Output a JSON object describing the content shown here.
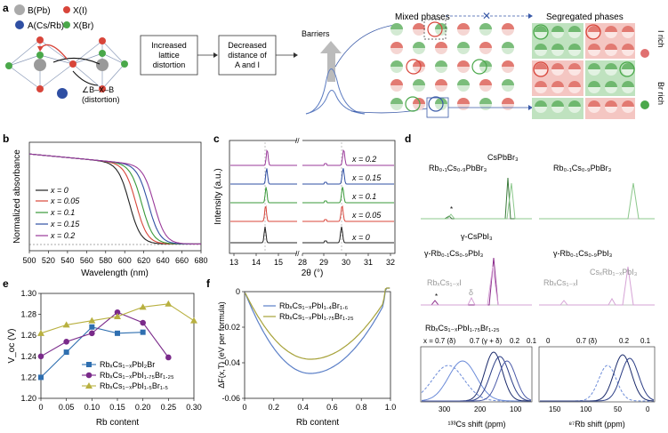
{
  "colors": {
    "red": "#d8453a",
    "blue": "#2f4fa3",
    "green": "#4aa84a",
    "grey": "#9a9a9a",
    "lightgreen": "#d8ecd8",
    "pink": "#f6dcdc",
    "purple": "#8a2a8a",
    "olive": "#a7a23a",
    "navy": "#2c3e86",
    "lightpurple": "#d6a3d6"
  },
  "panel_a": {
    "label": "a",
    "legend_b": "B(Pb)",
    "legend_x_i": "X(I)",
    "legend_a": "A(Cs/Rb)",
    "legend_x_br": "X(Br)",
    "angle_label_line1": "∠B–X–B",
    "angle_label_line2": "(distortion)",
    "box1_line1": "Increased",
    "box1_line2": "lattice",
    "box1_line3": "distortion",
    "box2_line1": "Decreased",
    "box2_line2": "distance of",
    "box2_line3": "A and I",
    "barriers_label": "Barriers",
    "mixed_label": "Mixed phases",
    "segregated_label": "Segregated phases",
    "i_rich_label": "I rich",
    "br_rich_label": "Br rich"
  },
  "panel_b": {
    "label": "b",
    "ylabel": "Normalized absorbance",
    "xlabel": "Wavelength (nm)",
    "legend": [
      "x = 0",
      "x = 0.05",
      "x = 0.1",
      "x = 0.15",
      "x = 0.2"
    ]
  },
  "panel_c": {
    "label": "c",
    "ylabel": "Intensity (a.u.)",
    "xlabel": "2θ (°)",
    "trace_labels": [
      "x = 0.2",
      "x = 0.15",
      "x = 0.1",
      "x = 0.05",
      "x = 0"
    ]
  },
  "panel_d": {
    "label": "d",
    "csbr_label": "CsPbBr₃",
    "rbcsbr_label_left": "Rb₀.₁Cs₀.₉PbBr₃",
    "rbcsbr_label_right": "Rb₀.₁Cs₀.₉PbBr₃",
    "gamma_cspbi3": "γ-CsPbI₃",
    "gamma_rbcs_left": "γ-Rb₀.₁Cs₀.₉PbI₃",
    "gamma_rbcs_right": "γ-Rb₀.₁Cs₀.₉PbI₃",
    "rbcsi_left": "RbₓCs₁₋ₓI",
    "delta_label": "δ",
    "rbcsi_right": "RbₓCs₁₋ₓI",
    "csrbpbi_right": "CsₓRb₁₋ₓPbI₃",
    "mixed_title": "RbₓCs₁₋ₓPbI₁.₇₅Br₁.₂₅",
    "x_labels_left": [
      "x = 0.7 (δ)",
      "0.7 (γ + δ)",
      "0.2",
      "0.1",
      "0"
    ],
    "x_labels_right": [
      "0.7 (δ)",
      "0.2",
      "0.1"
    ],
    "xlabel_left": "¹³³Cs shift (ppm)",
    "xlabel_right": "⁸⁷Rb shift (ppm)",
    "ticks_left": [
      "300",
      "200",
      "100"
    ],
    "ticks_right": [
      "150",
      "100",
      "50",
      "0"
    ]
  },
  "panel_e": {
    "label": "e"
  },
  "panel_f": {
    "label": "f"
  },
  "chart_data": [
    {
      "id": "b",
      "type": "line",
      "title": "",
      "xlabel": "Wavelength (nm)",
      "ylabel": "Normalized absorbance",
      "xlim": [
        500,
        680
      ],
      "xticks": [
        "500",
        "520",
        "540",
        "560",
        "580",
        "600",
        "620",
        "640",
        "660",
        "680"
      ],
      "series": [
        {
          "name": "x = 0",
          "edge_nm": 605,
          "color": "#222222"
        },
        {
          "name": "x = 0.05",
          "edge_nm": 612,
          "color": "#d8453a"
        },
        {
          "name": "x = 0.1",
          "edge_nm": 618,
          "color": "#3a9a3a"
        },
        {
          "name": "x = 0.15",
          "edge_nm": 625,
          "color": "#2f4fa3"
        },
        {
          "name": "x = 0.2",
          "edge_nm": 631,
          "color": "#9a3a9a"
        }
      ]
    },
    {
      "id": "c",
      "type": "line",
      "xlabel": "2θ (°)",
      "ylabel": "Intensity (a.u.)",
      "xticks": [
        "13",
        "14",
        "15",
        "28",
        "29",
        "30",
        "31",
        "32"
      ],
      "peaks_deg": [
        14.7,
        29.7
      ],
      "series": [
        {
          "name": "x = 0.2",
          "color": "#9a3a9a"
        },
        {
          "name": "x = 0.15",
          "color": "#2f4fa3"
        },
        {
          "name": "x = 0.1",
          "color": "#3a9a3a"
        },
        {
          "name": "x = 0.05",
          "color": "#d8453a"
        },
        {
          "name": "x = 0",
          "color": "#222222"
        }
      ]
    },
    {
      "id": "e",
      "type": "line",
      "xlabel": "Rb content",
      "ylabel": "V_oc (V)",
      "xlim": [
        0,
        0.3
      ],
      "ylim": [
        1.2,
        1.3
      ],
      "xticks": [
        "0",
        "0.05",
        "0.10",
        "0.15",
        "0.20",
        "0.25",
        "0.30"
      ],
      "yticks": [
        "1.20",
        "1.22",
        "1.24",
        "1.26",
        "1.28",
        "1.30"
      ],
      "series": [
        {
          "name": "RbₓCs₁₋ₓPbI₂Br",
          "marker": "square",
          "color": "#2f6fb0",
          "x": [
            0,
            0.05,
            0.1,
            0.15,
            0.2
          ],
          "y": [
            1.22,
            1.244,
            1.268,
            1.262,
            1.263
          ]
        },
        {
          "name": "RbₓCs₁₋ₓPbI₁.₇₅Br₁.₂₅",
          "marker": "circle",
          "color": "#7a2a8a",
          "x": [
            0,
            0.05,
            0.1,
            0.15,
            0.2,
            0.25
          ],
          "y": [
            1.24,
            1.254,
            1.262,
            1.282,
            1.272,
            1.239
          ]
        },
        {
          "name": "RbₓCs₁₋ₓPbI₁.₅Br₁.₅",
          "marker": "triangle",
          "color": "#b8b040",
          "x": [
            0,
            0.05,
            0.1,
            0.15,
            0.2,
            0.25,
            0.3
          ],
          "y": [
            1.262,
            1.27,
            1.274,
            1.278,
            1.287,
            1.29,
            1.274
          ]
        }
      ]
    },
    {
      "id": "f",
      "type": "line",
      "xlabel": "Rb content",
      "ylabel": "ΔF(x,T) (eV per formula)",
      "xlim": [
        0,
        1.0
      ],
      "ylim": [
        -0.06,
        0.0
      ],
      "xticks": [
        "0",
        "0.2",
        "0.4",
        "0.6",
        "0.8",
        "1.0"
      ],
      "yticks": [
        "0",
        "-0.02",
        "-0.04",
        "-0.06"
      ],
      "series": [
        {
          "name": "RbₓCs₁₋ₓPbI₁.₄Br₁.₆",
          "color": "#5b7fc7",
          "min_x": 0.45,
          "min_y": -0.046
        },
        {
          "name": "RbₓCs₁₋ₓPbI₁.₇₅Br₁.₂₅",
          "color": "#a7a23a",
          "min_x": 0.45,
          "min_y": -0.038
        }
      ]
    }
  ]
}
